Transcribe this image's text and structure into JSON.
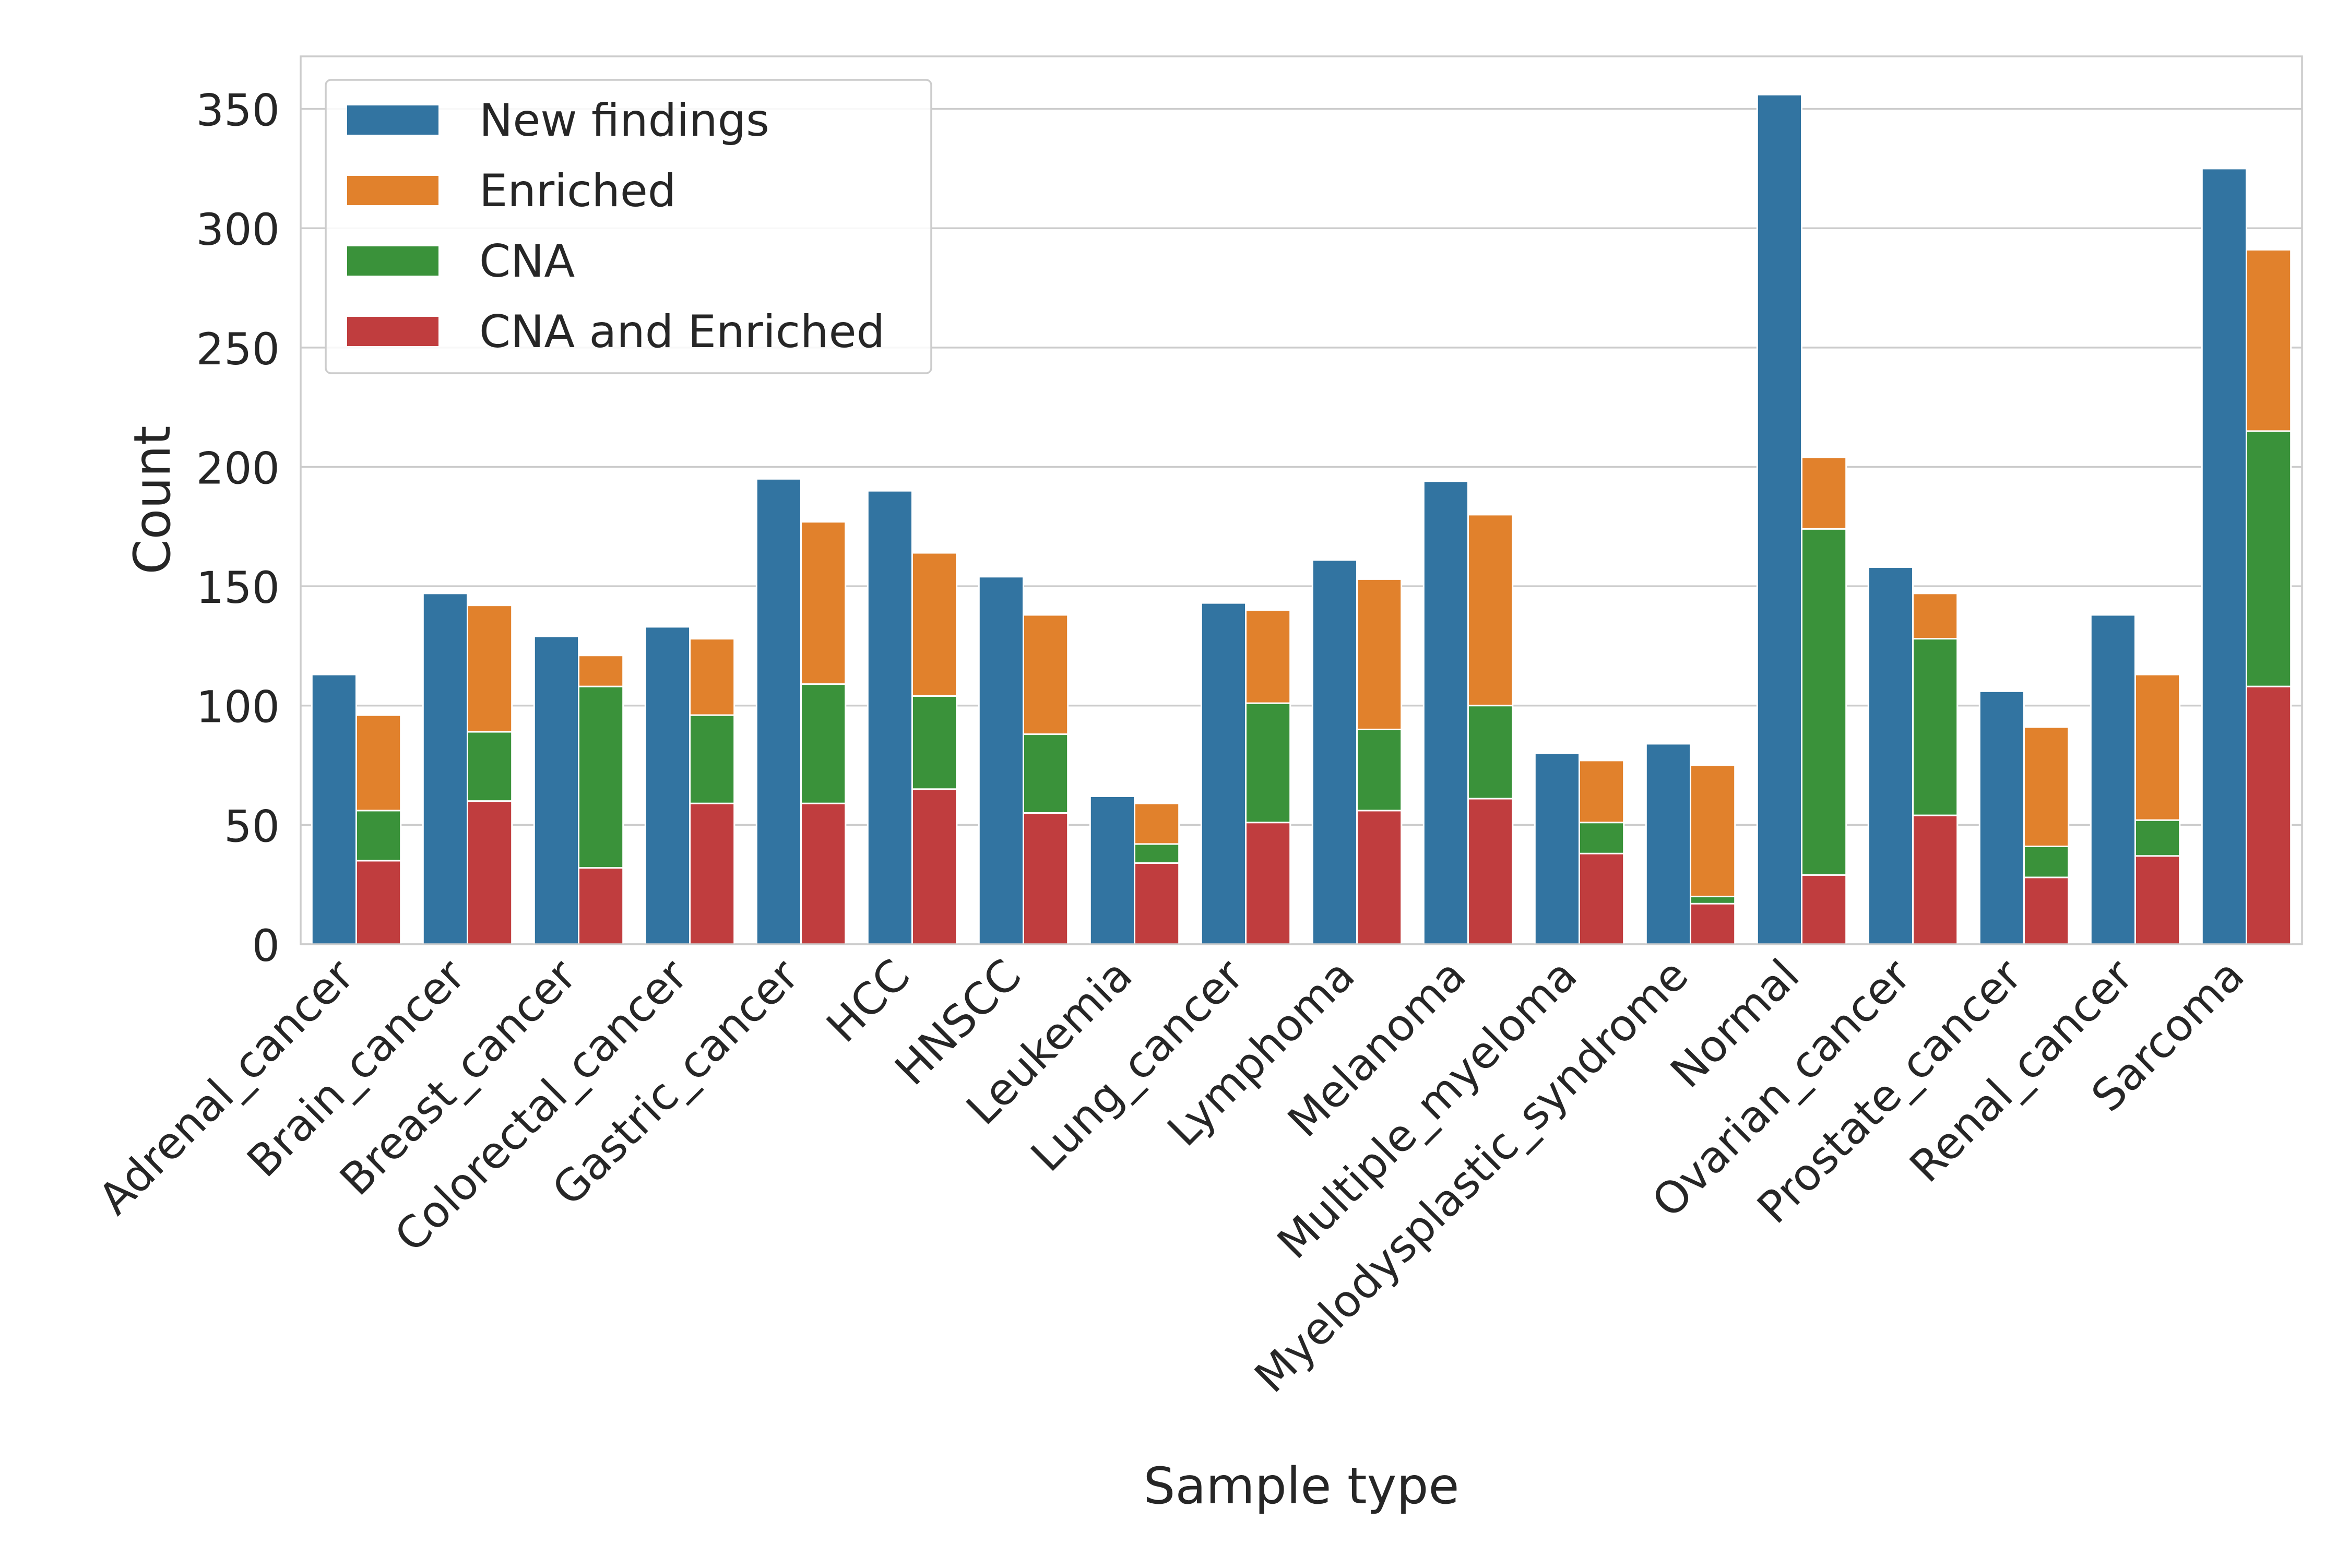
{
  "chart_data": {
    "type": "bar",
    "title": "",
    "xlabel": "Sample type",
    "ylabel": "Count",
    "ylim": [
      0,
      372
    ],
    "yticks": [
      0,
      50,
      100,
      150,
      200,
      250,
      300,
      350
    ],
    "grid": true,
    "legend_position": "top-left",
    "layout": "grouped: New findings bar beside a stacked bar (CNA and Enriched at bottom, then CNA, then Enriched)",
    "categories": [
      "Adrenal_cancer",
      "Brain_cancer",
      "Breast_cancer",
      "Colorectal_cancer",
      "Gastric_cancer",
      "HCC",
      "HNSCC",
      "Leukemia",
      "Lung_cancer",
      "Lymphoma",
      "Melanoma",
      "Multiple_myeloma",
      "Myelodysplastic_syndrome",
      "Normal",
      "Ovarian_cancer",
      "Prostate_cancer",
      "Renal_cancer",
      "Sarcoma"
    ],
    "series": [
      {
        "name": "New findings",
        "color": "#3274a1",
        "values": [
          113,
          147,
          129,
          133,
          195,
          190,
          154,
          62,
          143,
          161,
          194,
          80,
          84,
          356,
          158,
          106,
          138,
          325
        ]
      },
      {
        "name": "Enriched",
        "color": "#e1812c",
        "values": [
          96,
          142,
          121,
          128,
          177,
          164,
          138,
          59,
          140,
          153,
          180,
          77,
          75,
          204,
          147,
          91,
          113,
          291
        ]
      },
      {
        "name": "CNA",
        "color": "#3a923a",
        "values": [
          56,
          89,
          108,
          96,
          109,
          104,
          88,
          42,
          101,
          90,
          100,
          51,
          20,
          174,
          128,
          41,
          52,
          215
        ]
      },
      {
        "name": "CNA and Enriched",
        "color": "#c03d3e",
        "values": [
          35,
          60,
          32,
          59,
          59,
          65,
          55,
          34,
          51,
          56,
          61,
          38,
          17,
          29,
          54,
          28,
          37,
          108
        ]
      }
    ]
  }
}
